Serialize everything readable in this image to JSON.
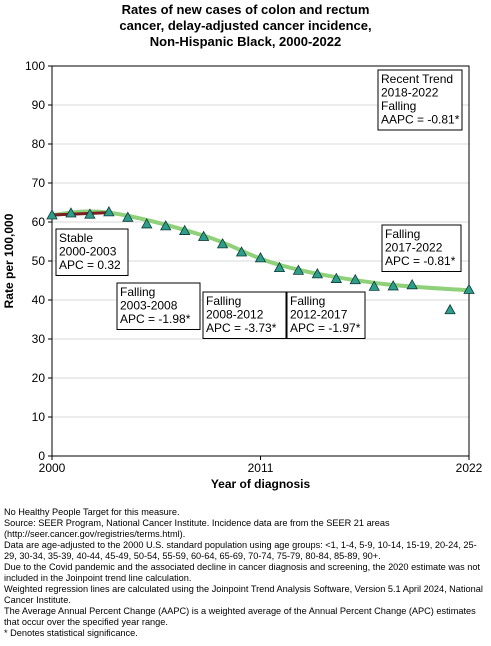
{
  "chart_data": {
    "type": "line",
    "title": [
      "Rates of new cases of colon and rectum",
      "cancer, delay-adjusted cancer incidence,",
      "Non-Hispanic Black,  2000-2022"
    ],
    "xlabel": "Year of diagnosis",
    "ylabel": "Rate per 100,000",
    "xlim": [
      2000,
      2022
    ],
    "ylim": [
      0,
      100
    ],
    "xticks": [
      "2000",
      "2011",
      "2022"
    ],
    "yticks": [
      "0",
      "10",
      "20",
      "30",
      "40",
      "50",
      "60",
      "70",
      "80",
      "90",
      "100"
    ],
    "grid": true,
    "observed": {
      "x": [
        2000,
        2001,
        2002,
        2003,
        2004,
        2005,
        2006,
        2007,
        2008,
        2009,
        2010,
        2011,
        2012,
        2013,
        2014,
        2015,
        2016,
        2017,
        2018,
        2019,
        2021,
        2022
      ],
      "y": [
        61.8,
        62.3,
        62.0,
        62.6,
        61.2,
        59.5,
        59.0,
        57.8,
        56.3,
        54.4,
        52.3,
        50.8,
        48.3,
        47.6,
        46.7,
        45.5,
        45.2,
        43.5,
        43.6,
        43.9,
        37.5,
        42.7
      ]
    },
    "trend": {
      "x": [
        2000,
        2003,
        2008,
        2012,
        2017,
        2022
      ],
      "y": [
        61.8,
        62.4,
        56.5,
        49.0,
        44.4,
        42.5
      ]
    },
    "colors": {
      "marker": "#2e9e8c",
      "marker_edge": "#0e3a36",
      "trend": "#8fd17a",
      "first_segment": "#7a1f1f"
    },
    "annotations": [
      {
        "lines": [
          "Recent Trend",
          "2018-2022",
          "Falling",
          "AAPC = -0.81*"
        ]
      },
      {
        "lines": [
          "Stable",
          "2000-2003",
          "APC =  0.32"
        ]
      },
      {
        "lines": [
          "Falling",
          "2003-2008",
          "APC = -1.98*"
        ]
      },
      {
        "lines": [
          "Falling",
          "2008-2012",
          "APC = -3.73*"
        ]
      },
      {
        "lines": [
          "Falling",
          "2012-2017",
          "APC = -1.97*"
        ]
      },
      {
        "lines": [
          "Falling",
          "2017-2022",
          "APC = -0.81*"
        ]
      }
    ]
  },
  "footnotes": [
    "No Healthy People Target for this measure.",
    "Source: SEER Program, National Cancer Institute. Incidence data are from the SEER 21 areas (http://seer.cancer.gov/registries/terms.html).",
    "Data are age-adjusted to the 2000 U.S. standard population using age groups: <1, 1-4, 5-9, 10-14, 15-19, 20-24, 25-29, 30-34, 35-39, 40-44, 45-49, 50-54, 55-59, 60-64, 65-69, 70-74, 75-79, 80-84, 85-89, 90+.",
    "Due to the Covid pandemic and the associated decline in cancer diagnosis and screening, the 2020 estimate was not included in the Joinpoint trend line calculation.",
    "Weighted regression lines are calculated using the Joinpoint Trend Analysis Software, Version 5.1 April 2024, National Cancer Institute.",
    "The Average Annual Percent Change (AAPC) is a weighted average of the Annual Percent Change (APC) estimates that occur over the specified year range.",
    "* Denotes statistical significance."
  ]
}
